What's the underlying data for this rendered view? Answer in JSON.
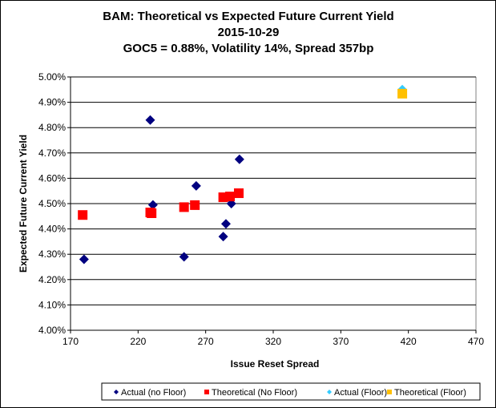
{
  "chart_data": {
    "type": "scatter",
    "title": [
      "BAM: Theoretical vs Expected Future Current Yield",
      "2015-10-29",
      "GOC5 = 0.88%, Volatility 14%, Spread 357bp"
    ],
    "xlabel": "Issue Reset Spread",
    "ylabel": "Expected Future Current Yield",
    "xlim": [
      170,
      470
    ],
    "ylim": [
      4.0,
      5.0
    ],
    "xticks": [
      "170",
      "220",
      "270",
      "320",
      "370",
      "420",
      "470"
    ],
    "xtick_values": [
      170,
      220,
      270,
      320,
      370,
      420,
      470
    ],
    "yticks": [
      "4.00%",
      "4.10%",
      "4.20%",
      "4.30%",
      "4.40%",
      "4.50%",
      "4.60%",
      "4.70%",
      "4.80%",
      "4.90%",
      "5.00%"
    ],
    "ytick_values": [
      4.0,
      4.1,
      4.2,
      4.3,
      4.4,
      4.5,
      4.6,
      4.7,
      4.8,
      4.9,
      5.0
    ],
    "grid": "horizontal",
    "legend_position": "bottom",
    "series": [
      {
        "name": "Actual (no Floor)",
        "marker": "diamond",
        "color": "#000080",
        "points": [
          [
            180,
            4.28
          ],
          [
            229,
            4.83
          ],
          [
            231,
            4.495
          ],
          [
            254,
            4.29
          ],
          [
            263,
            4.57
          ],
          [
            283,
            4.37
          ],
          [
            285,
            4.42
          ],
          [
            289,
            4.5
          ],
          [
            295,
            4.675
          ]
        ]
      },
      {
        "name": "Theoretical (No Floor)",
        "marker": "square",
        "color": "#ff0000",
        "points": [
          [
            179,
            4.455
          ],
          [
            229,
            4.465
          ],
          [
            230,
            4.462
          ],
          [
            254,
            4.486
          ],
          [
            262,
            4.494
          ],
          [
            283,
            4.525
          ],
          [
            288,
            4.528
          ],
          [
            294.5,
            4.541
          ]
        ]
      },
      {
        "name": "Actual (Floor)",
        "marker": "diamond",
        "color": "#33ccff",
        "points": [
          [
            415.5,
            4.95
          ]
        ]
      },
      {
        "name": "Theoretical (Floor)",
        "marker": "square",
        "color": "#ffc000",
        "points": [
          [
            415.5,
            4.934
          ]
        ]
      }
    ]
  }
}
